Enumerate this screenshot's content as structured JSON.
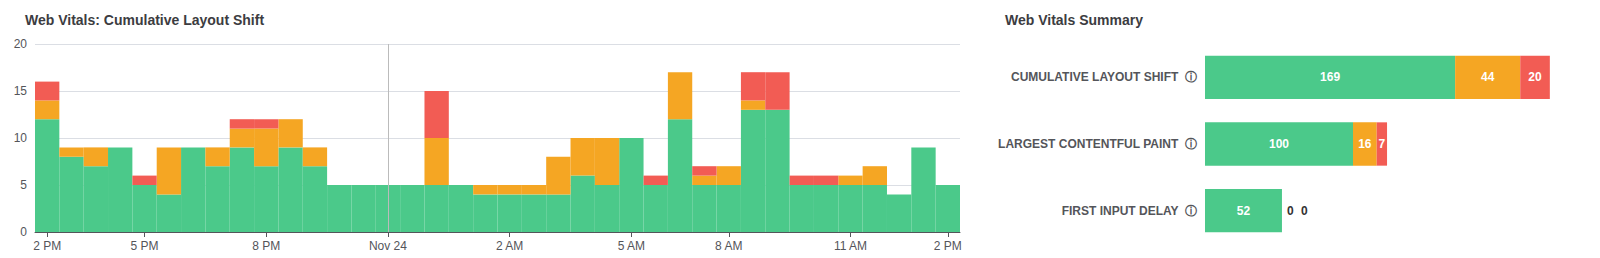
{
  "chart_data": [
    {
      "type": "bar",
      "title": "Web Vitals: Cumulative Layout Shift",
      "categories": [
        "2 PM",
        null,
        null,
        null,
        "5 PM",
        null,
        null,
        null,
        null,
        "8 PM",
        null,
        null,
        null,
        null,
        "Nov 24",
        null,
        null,
        null,
        null,
        "2 AM",
        null,
        null,
        null,
        null,
        "5 AM",
        null,
        null,
        null,
        "8 AM",
        null,
        null,
        null,
        null,
        "11 AM",
        null,
        null,
        null,
        "2 PM"
      ],
      "series": [
        {
          "color": "#4bc98a",
          "values": [
            12,
            8,
            7,
            9,
            5,
            4,
            9,
            7,
            9,
            7,
            9,
            7,
            5,
            5,
            5,
            5,
            5,
            5,
            4,
            4,
            4,
            4,
            6,
            5,
            10,
            5,
            12,
            5,
            5,
            13,
            13,
            5,
            5,
            5,
            5,
            4,
            9,
            5
          ]
        },
        {
          "color": "#f5a623",
          "values": [
            2,
            1,
            2,
            0,
            0,
            5,
            0,
            2,
            2,
            4,
            3,
            2,
            0,
            0,
            0,
            0,
            5,
            0,
            1,
            1,
            1,
            4,
            4,
            5,
            0,
            0,
            5,
            1,
            2,
            1,
            0,
            0,
            0,
            1,
            2,
            0,
            0,
            0
          ]
        },
        {
          "color": "#f25c54",
          "values": [
            2,
            0,
            0,
            0,
            1,
            0,
            0,
            0,
            1,
            1,
            0,
            0,
            0,
            0,
            0,
            0,
            5,
            0,
            0,
            0,
            0,
            0,
            0,
            0,
            0,
            1,
            0,
            1,
            0,
            3,
            4,
            1,
            1,
            0,
            0,
            0,
            0,
            0
          ]
        }
      ],
      "stacked": true,
      "ylim": [
        0,
        20
      ],
      "yticks": [
        0,
        5,
        10,
        15,
        20
      ],
      "grid": true,
      "vline": "Nov 24"
    },
    {
      "type": "bar",
      "title": "Web Vitals Summary",
      "orientation": "horizontal",
      "categories": [
        "CUMULATIVE LAYOUT SHIFT  ⓘ",
        "LARGEST CONTENTFUL PAINT  ⓘ",
        "FIRST INPUT DELAY  ⓘ"
      ],
      "series": [
        {
          "color": "#4bc98a",
          "values": [
            169,
            100,
            52
          ]
        },
        {
          "color": "#f5a623",
          "values": [
            44,
            16,
            0
          ]
        },
        {
          "color": "#f25c54",
          "values": [
            20,
            7,
            0
          ]
        }
      ],
      "stacked": true,
      "xlim": [
        0,
        250
      ],
      "xticks": [
        0,
        50,
        100,
        150,
        200,
        250
      ],
      "tick_labels": "y",
      "data_labels": true,
      "grid": false
    }
  ]
}
